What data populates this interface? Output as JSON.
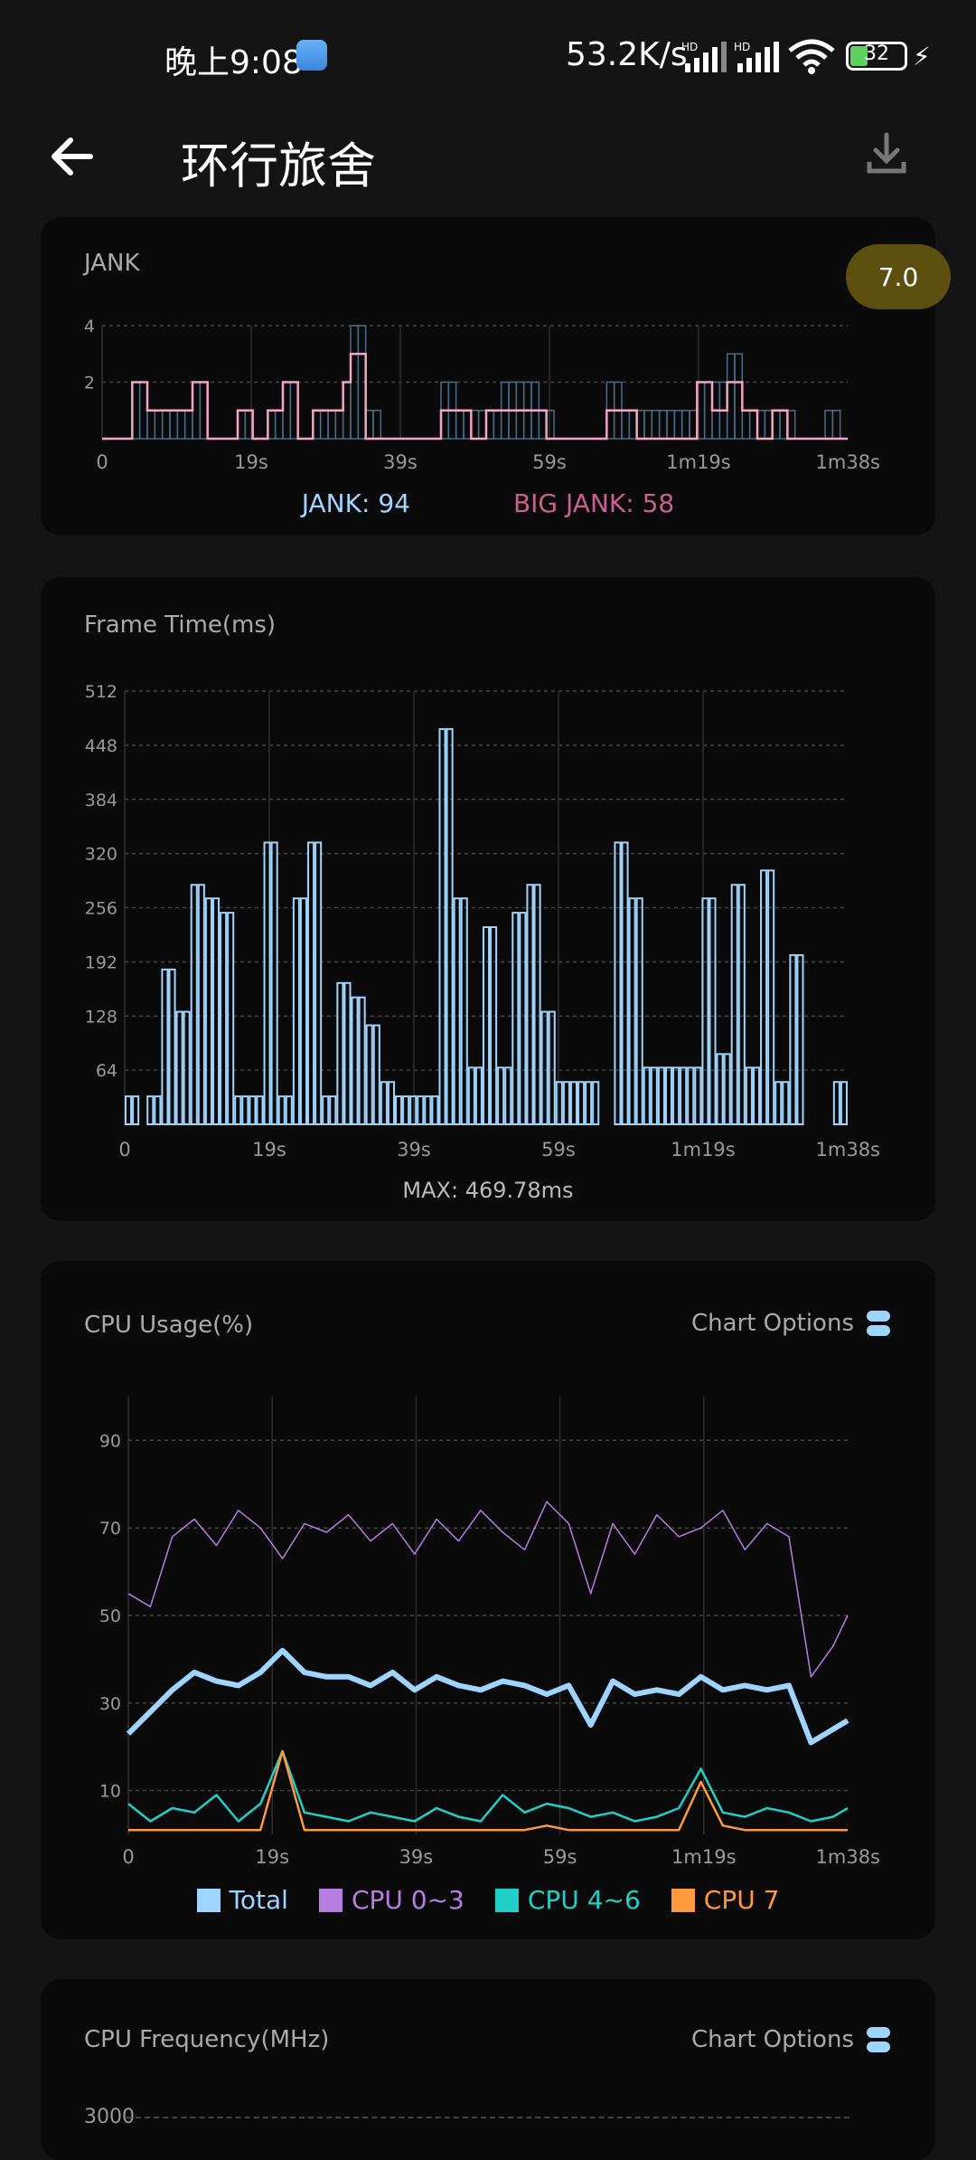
{
  "status_bar": {
    "time": "晚上9:08",
    "network_speed": "53.2K/s",
    "signal_1_label": "HD",
    "signal_2_label": "HD",
    "battery": "32"
  },
  "app_bar": {
    "title": "环行旅舍",
    "back_icon": "arrow-left-icon",
    "download_icon": "download-icon"
  },
  "fps_badge": "7.0",
  "jank_card": {
    "title": "JANK",
    "x_ticks": [
      "0",
      "19s",
      "39s",
      "59s",
      "1m19s",
      "1m38s"
    ],
    "y_ticks": [
      "4",
      "2"
    ],
    "legend_jank": "JANK: 94",
    "legend_big_jank": "BIG JANK: 58",
    "colors": {
      "jank": "#4a6c8a",
      "big_jank": "#f4a6c8"
    }
  },
  "frame_card": {
    "title": "Frame Time(ms)",
    "y_ticks": [
      "512",
      "448",
      "384",
      "320",
      "256",
      "192",
      "128",
      "64"
    ],
    "x_ticks": [
      "0",
      "19s",
      "39s",
      "59s",
      "1m19s",
      "1m38s"
    ],
    "max_label": "MAX: 469.78ms",
    "color": "#9fd4ff"
  },
  "cpu_card": {
    "title": "CPU Usage(%)",
    "options_label": "Chart Options",
    "y_ticks": [
      "90",
      "70",
      "50",
      "30",
      "10"
    ],
    "x_ticks": [
      "0",
      "19s",
      "39s",
      "59s",
      "1m19s",
      "1m38s"
    ],
    "legend": [
      {
        "label": "Total",
        "color": "#9fd4ff"
      },
      {
        "label": "CPU 0~3",
        "color": "#b57ee0"
      },
      {
        "label": "CPU 4~6",
        "color": "#1fd0c8"
      },
      {
        "label": "CPU 7",
        "color": "#ff9a3c"
      }
    ]
  },
  "freq_card": {
    "title": "CPU Frequency(MHz)",
    "options_label": "Chart Options",
    "first_tick": "3000"
  },
  "chart_data": [
    {
      "type": "bar",
      "title": "JANK",
      "x_range": [
        0,
        98
      ],
      "ylim": [
        0,
        4
      ],
      "series": [
        {
          "name": "JANK",
          "values": [
            0,
            0,
            0,
            0,
            2,
            2,
            1,
            1,
            1,
            1,
            1,
            1,
            2,
            2,
            0,
            0,
            0,
            0,
            1,
            1,
            0,
            0,
            1,
            1,
            2,
            2,
            0,
            0,
            1,
            1,
            1,
            1,
            2,
            4,
            4,
            1,
            1,
            0,
            0,
            0,
            0,
            0,
            0,
            0,
            0,
            2,
            2,
            1,
            1,
            1,
            1,
            1,
            1,
            2,
            2,
            2,
            2,
            2,
            1,
            1,
            0,
            0,
            0,
            0,
            0,
            0,
            0,
            2,
            2,
            1,
            1,
            1,
            1,
            1,
            1,
            1,
            1,
            1,
            1,
            2,
            2,
            2,
            2,
            3,
            3,
            1,
            1,
            1,
            1,
            1,
            1,
            1,
            0,
            0,
            0,
            0,
            1,
            1,
            0
          ]
        },
        {
          "name": "BIG JANK",
          "values": [
            0,
            0,
            0,
            0,
            2,
            2,
            1,
            1,
            1,
            1,
            1,
            1,
            2,
            2,
            0,
            0,
            0,
            0,
            1,
            1,
            0,
            0,
            1,
            1,
            2,
            2,
            0,
            0,
            1,
            1,
            1,
            1,
            2,
            3,
            3,
            0,
            0,
            0,
            0,
            0,
            0,
            0,
            0,
            0,
            0,
            1,
            1,
            1,
            1,
            0,
            0,
            1,
            1,
            1,
            1,
            1,
            1,
            1,
            1,
            0,
            0,
            0,
            0,
            0,
            0,
            0,
            0,
            1,
            1,
            1,
            1,
            0,
            0,
            0,
            0,
            0,
            0,
            0,
            0,
            2,
            2,
            1,
            1,
            2,
            2,
            1,
            1,
            0,
            0,
            1,
            1,
            0,
            0,
            0,
            0,
            0,
            0,
            0,
            0
          ]
        }
      ]
    },
    {
      "type": "bar",
      "title": "Frame Time(ms)",
      "x_range": [
        0,
        98
      ],
      "ylim": [
        0,
        512
      ],
      "values": [
        33,
        33,
        0,
        33,
        33,
        183,
        183,
        133,
        133,
        283,
        283,
        267,
        267,
        250,
        250,
        33,
        33,
        33,
        33,
        333,
        333,
        33,
        33,
        267,
        267,
        333,
        333,
        33,
        33,
        167,
        167,
        150,
        150,
        117,
        117,
        50,
        50,
        33,
        33,
        33,
        33,
        33,
        33,
        467,
        467,
        267,
        267,
        67,
        67,
        233,
        233,
        67,
        67,
        250,
        250,
        283,
        283,
        133,
        133,
        50,
        50,
        50,
        50,
        50,
        50,
        0,
        0,
        333,
        333,
        267,
        267,
        67,
        67,
        67,
        67,
        67,
        67,
        67,
        67,
        267,
        267,
        83,
        83,
        283,
        283,
        67,
        67,
        300,
        300,
        50,
        50,
        200,
        200,
        0,
        0,
        0,
        0,
        50,
        50
      ]
    },
    {
      "type": "line",
      "title": "CPU Usage(%)",
      "x_range": [
        0,
        98
      ],
      "ylim": [
        0,
        100
      ],
      "series": [
        {
          "name": "Total",
          "x": [
            0,
            3,
            6,
            9,
            12,
            15,
            18,
            21,
            24,
            27,
            30,
            33,
            36,
            39,
            42,
            45,
            48,
            51,
            54,
            57,
            60,
            63,
            66,
            69,
            72,
            75,
            78,
            81,
            84,
            87,
            90,
            93,
            96,
            98
          ],
          "values": [
            23,
            28,
            33,
            37,
            35,
            34,
            37,
            42,
            37,
            36,
            36,
            34,
            37,
            33,
            36,
            34,
            33,
            35,
            34,
            32,
            34,
            25,
            35,
            32,
            33,
            32,
            36,
            33,
            34,
            33,
            34,
            21,
            24,
            26
          ]
        },
        {
          "name": "CPU 0~3",
          "x": [
            0,
            3,
            6,
            9,
            12,
            15,
            18,
            21,
            24,
            27,
            30,
            33,
            36,
            39,
            42,
            45,
            48,
            51,
            54,
            57,
            60,
            63,
            66,
            69,
            72,
            75,
            78,
            81,
            84,
            87,
            90,
            93,
            96,
            98
          ],
          "values": [
            55,
            52,
            68,
            72,
            66,
            74,
            70,
            63,
            71,
            69,
            73,
            67,
            71,
            64,
            72,
            67,
            74,
            69,
            65,
            76,
            71,
            55,
            71,
            64,
            73,
            68,
            70,
            74,
            65,
            71,
            68,
            36,
            43,
            50
          ]
        },
        {
          "name": "CPU 4~6",
          "x": [
            0,
            3,
            6,
            9,
            12,
            15,
            18,
            21,
            24,
            27,
            30,
            33,
            36,
            39,
            42,
            45,
            48,
            51,
            54,
            57,
            60,
            63,
            66,
            69,
            72,
            75,
            78,
            81,
            84,
            87,
            90,
            93,
            96,
            98
          ],
          "values": [
            7,
            3,
            6,
            5,
            9,
            3,
            7,
            19,
            5,
            4,
            3,
            5,
            4,
            3,
            6,
            4,
            3,
            9,
            5,
            7,
            6,
            4,
            5,
            3,
            4,
            6,
            15,
            5,
            4,
            6,
            5,
            3,
            4,
            6
          ]
        },
        {
          "name": "CPU 7",
          "x": [
            0,
            3,
            6,
            9,
            12,
            15,
            18,
            21,
            24,
            27,
            30,
            33,
            36,
            39,
            42,
            45,
            48,
            51,
            54,
            57,
            60,
            63,
            66,
            69,
            72,
            75,
            78,
            81,
            84,
            87,
            90,
            93,
            96,
            98
          ],
          "values": [
            1,
            1,
            1,
            1,
            1,
            1,
            1,
            19,
            1,
            1,
            1,
            1,
            1,
            1,
            1,
            1,
            1,
            1,
            1,
            2,
            1,
            1,
            1,
            1,
            1,
            1,
            12,
            2,
            1,
            1,
            1,
            1,
            1,
            1
          ]
        }
      ]
    }
  ]
}
